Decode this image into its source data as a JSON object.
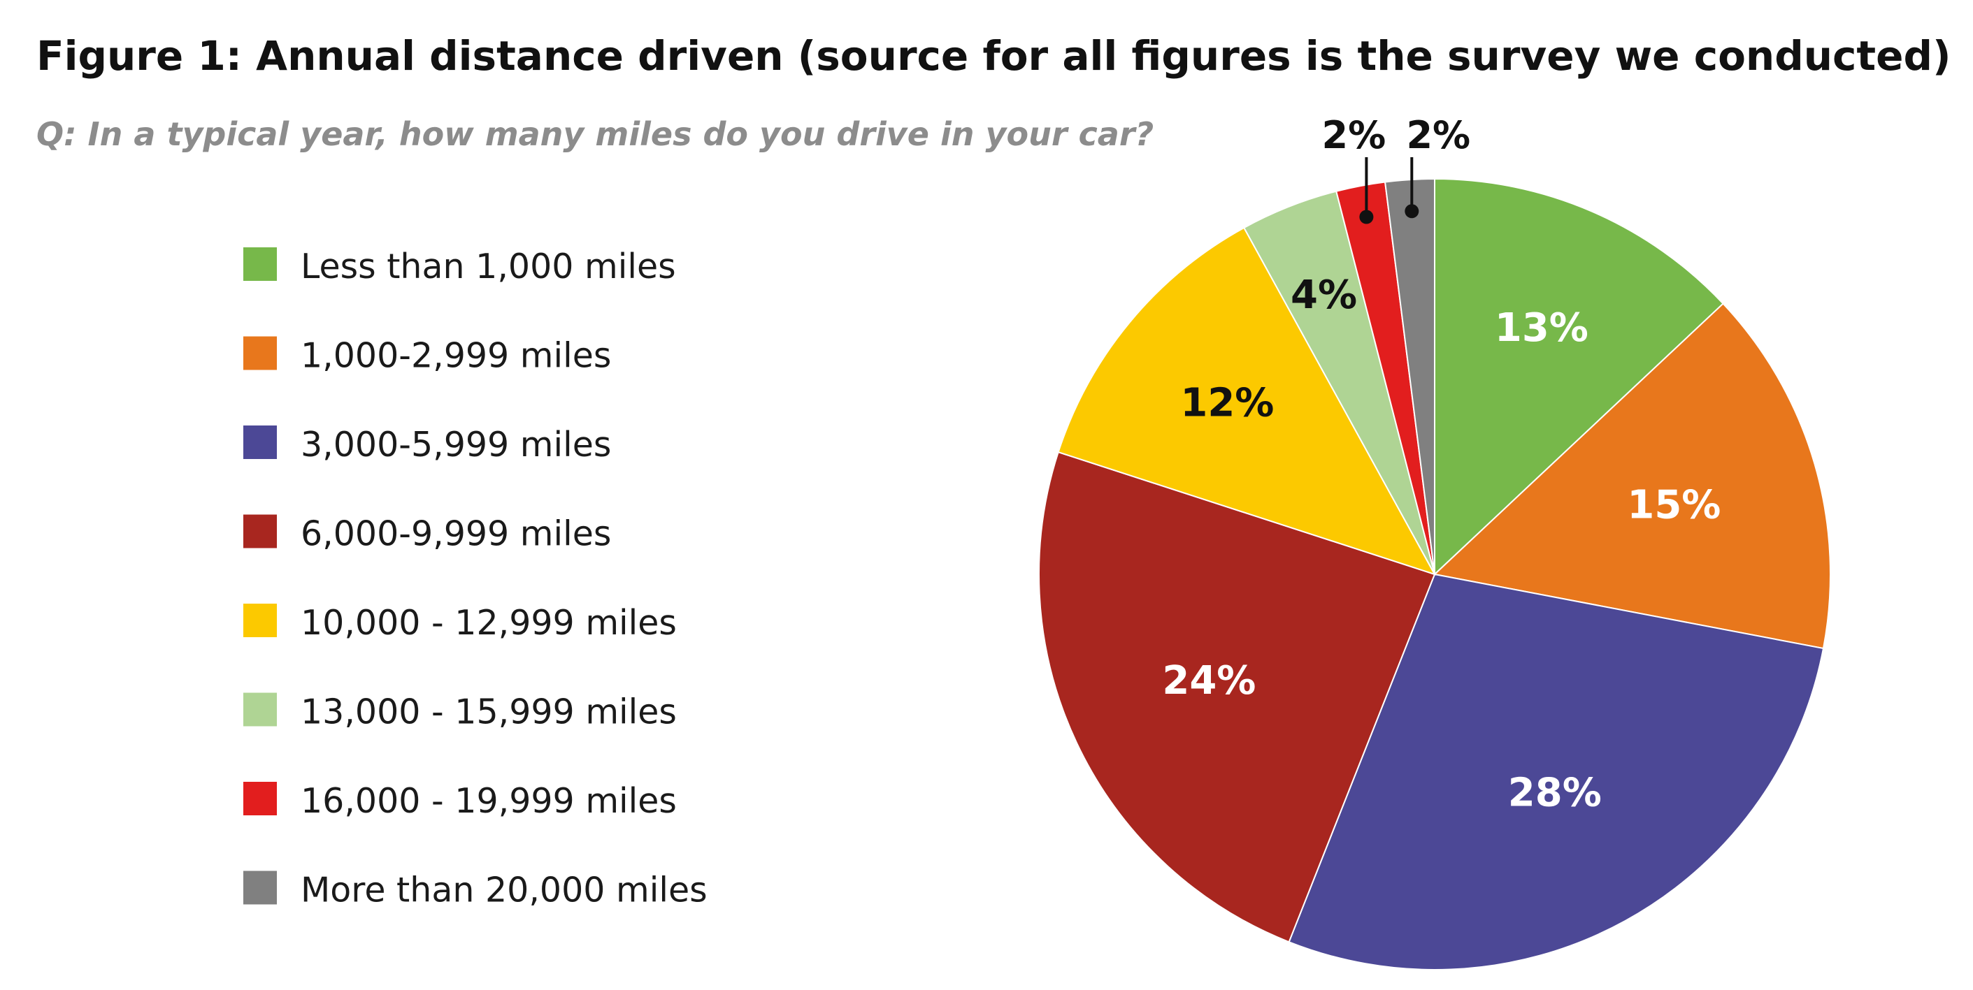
{
  "chart_data": {
    "type": "pie",
    "title": "Figure 1: Annual distance driven (source for all figures is the survey we conducted)",
    "subtitle": "Q: In a typical year, how many miles do you drive in your car?",
    "legend_placement": "left",
    "slices": [
      {
        "label": "Less than 1,000 miles",
        "value": 13,
        "display": "13%",
        "color": "#77b84a",
        "text_color": "#ffffff"
      },
      {
        "label": "1,000-2,999 miles",
        "value": 15,
        "display": "15%",
        "color": "#e8771c",
        "text_color": "#ffffff"
      },
      {
        "label": "3,000-5,999 miles",
        "value": 28,
        "display": "28%",
        "color": "#4c4896",
        "text_color": "#ffffff"
      },
      {
        "label": "6,000-9,999 miles",
        "value": 24,
        "display": "24%",
        "color": "#a8261f",
        "text_color": "#ffffff"
      },
      {
        "label": "10,000 - 12,999 miles",
        "value": 12,
        "display": "12%",
        "color": "#fcc900",
        "text_color": "#111111"
      },
      {
        "label": "13,000 - 15,999 miles",
        "value": 4,
        "display": "4%",
        "color": "#afd494",
        "text_color": "#111111"
      },
      {
        "label": "16,000 - 19,999 miles",
        "value": 2,
        "display": "2%",
        "color": "#e21e1e",
        "text_color": "#111111"
      },
      {
        "label": "More than 20,000 miles",
        "value": 2,
        "display": "2%",
        "color": "#808080",
        "text_color": "#111111"
      }
    ]
  }
}
